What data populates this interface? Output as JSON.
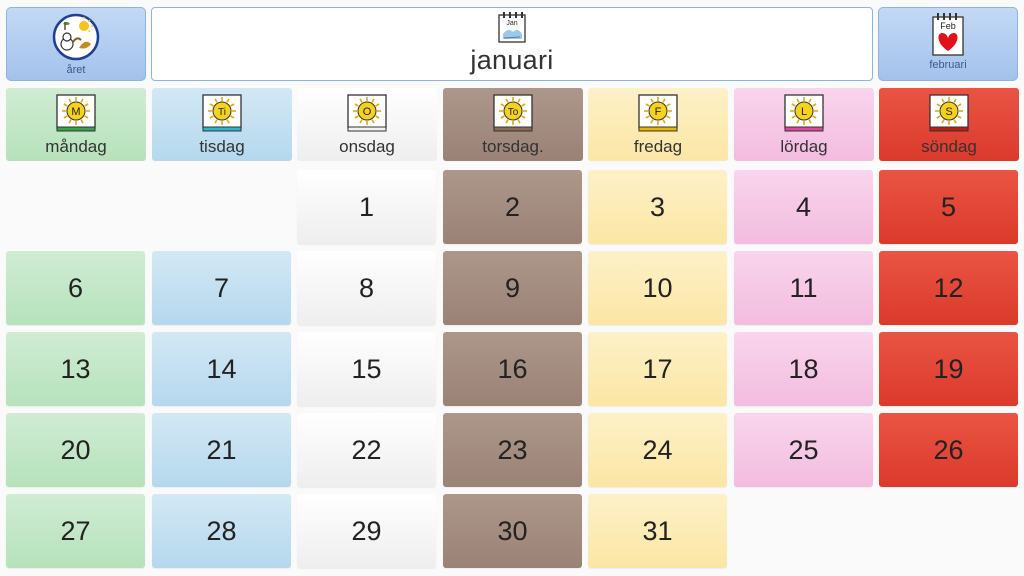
{
  "header": {
    "prev_button": {
      "label": "året",
      "icon": "year-seasons-icon"
    },
    "title": {
      "label": "januari",
      "icon": "calendar-page-icon",
      "icon_text": "Jan"
    },
    "next_button": {
      "label": "februari",
      "icon": "february-heart-icon",
      "icon_text": "Feb"
    }
  },
  "weekdays": [
    {
      "name": "måndag",
      "letter": "M",
      "color": "#b6e2bb",
      "stripe": "#3aa24a"
    },
    {
      "name": "tisdag",
      "letter": "Ti",
      "color": "#b5d8ee",
      "stripe": "#32b4c8"
    },
    {
      "name": "onsdag",
      "letter": "O",
      "color": "#ffffff",
      "stripe": "#f2f2f2"
    },
    {
      "name": "torsdag.",
      "letter": "To",
      "color": "#9a8276",
      "stripe": "#8a6b55"
    },
    {
      "name": "fredag",
      "letter": "F",
      "color": "#fbe6a4",
      "stripe": "#e8b800"
    },
    {
      "name": "lördag",
      "letter": "L",
      "color": "#f3bce0",
      "stripe": "#d94a9a"
    },
    {
      "name": "söndag",
      "letter": "S",
      "color": "#db3a2b",
      "stripe": "#b51f14"
    }
  ],
  "month": {
    "first_weekday_index": 2,
    "days": [
      "1",
      "2",
      "3",
      "4",
      "5",
      "6",
      "7",
      "8",
      "9",
      "10",
      "11",
      "12",
      "13",
      "14",
      "15",
      "16",
      "17",
      "18",
      "19",
      "20",
      "21",
      "22",
      "23",
      "24",
      "25",
      "26",
      "27",
      "28",
      "29",
      "30",
      "31"
    ]
  }
}
